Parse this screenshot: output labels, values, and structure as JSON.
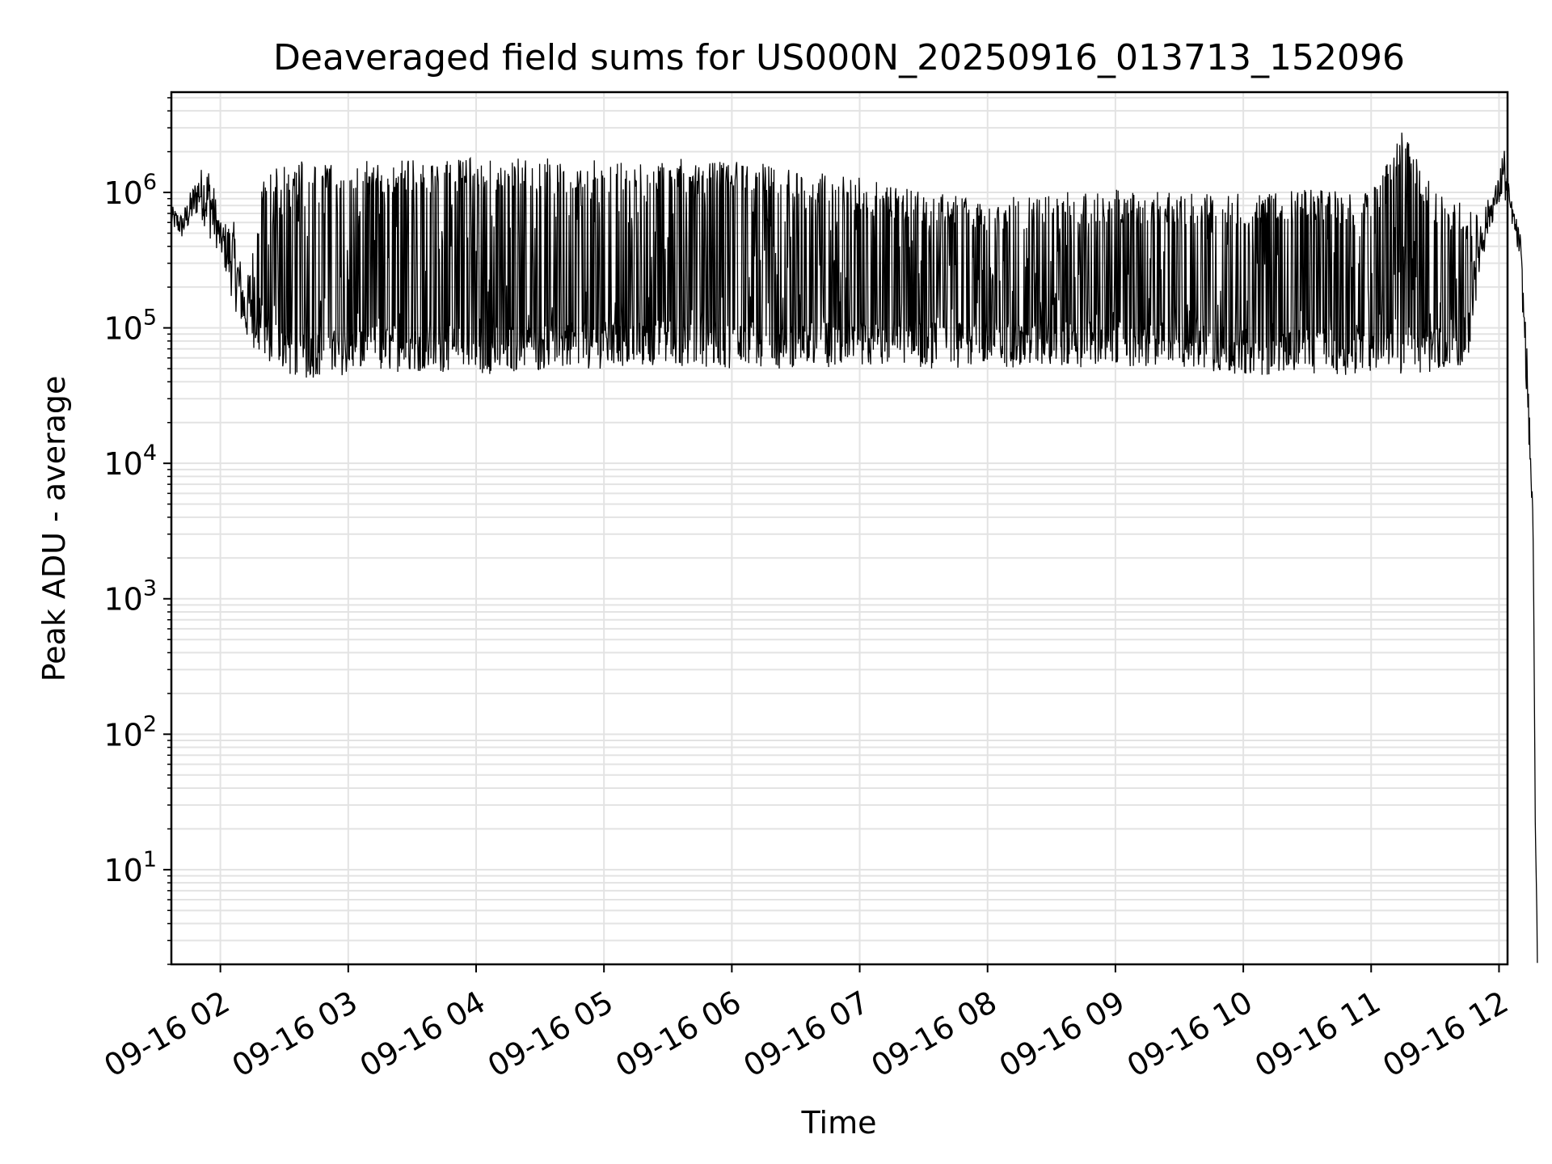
{
  "chart_data": {
    "type": "line",
    "title": "Deaveraged field sums for US000N_20250916_013713_152096",
    "xlabel": "Time",
    "ylabel": "Peak ADU - average",
    "yscale": "log",
    "ylim": [
      2,
      5500000
    ],
    "xlim": [
      "2025-09-16 01:37",
      "2025-09-16 12:04"
    ],
    "grid": true,
    "x_tick_labels": [
      "09-16 02",
      "09-16 03",
      "09-16 04",
      "09-16 05",
      "09-16 06",
      "09-16 07",
      "09-16 08",
      "09-16 09",
      "09-16 10",
      "09-16 11",
      "09-16 12"
    ],
    "y_ticks": [
      {
        "base": "10",
        "exp": "1",
        "value": 10
      },
      {
        "base": "10",
        "exp": "2",
        "value": 100
      },
      {
        "base": "10",
        "exp": "3",
        "value": 1000
      },
      {
        "base": "10",
        "exp": "4",
        "value": 10000
      },
      {
        "base": "10",
        "exp": "5",
        "value": 100000
      },
      {
        "base": "10",
        "exp": "6",
        "value": 1000000
      }
    ],
    "series": [
      {
        "color": "#000000",
        "envelope": [
          {
            "x": "2025-09-16 01:37",
            "low": 550000,
            "high": 800000
          },
          {
            "x": "2025-09-16 01:42",
            "low": 450000,
            "high": 700000
          },
          {
            "x": "2025-09-16 01:50",
            "low": 700000,
            "high": 1500000
          },
          {
            "x": "2025-09-16 01:55",
            "low": 450000,
            "high": 1700000
          },
          {
            "x": "2025-09-16 02:00",
            "low": 350000,
            "high": 600000
          },
          {
            "x": "2025-09-16 02:06",
            "low": 150000,
            "high": 650000
          },
          {
            "x": "2025-09-16 02:12",
            "low": 80000,
            "high": 200000
          },
          {
            "x": "2025-09-16 02:20",
            "low": 60000,
            "high": 1400000
          },
          {
            "x": "2025-09-16 02:30",
            "low": 45000,
            "high": 1600000
          },
          {
            "x": "2025-09-16 02:40",
            "low": 42000,
            "high": 1750000
          },
          {
            "x": "2025-09-16 03:00",
            "low": 45000,
            "high": 1700000
          },
          {
            "x": "2025-09-16 03:30",
            "low": 48000,
            "high": 1750000
          },
          {
            "x": "2025-09-16 04:00",
            "low": 45000,
            "high": 1800000
          },
          {
            "x": "2025-09-16 04:30",
            "low": 48000,
            "high": 1800000
          },
          {
            "x": "2025-09-16 05:00",
            "low": 50000,
            "high": 1750000
          },
          {
            "x": "2025-09-16 05:30",
            "low": 52000,
            "high": 1800000
          },
          {
            "x": "2025-09-16 06:00",
            "low": 50000,
            "high": 1700000
          },
          {
            "x": "2025-09-16 06:30",
            "low": 50000,
            "high": 1550000
          },
          {
            "x": "2025-09-16 07:00",
            "low": 50000,
            "high": 1300000
          },
          {
            "x": "2025-09-16 07:30",
            "low": 50000,
            "high": 1000000
          },
          {
            "x": "2025-09-16 08:00",
            "low": 50000,
            "high": 900000
          },
          {
            "x": "2025-09-16 08:30",
            "low": 52000,
            "high": 1000000
          },
          {
            "x": "2025-09-16 09:00",
            "low": 50000,
            "high": 1050000
          },
          {
            "x": "2025-09-16 09:30",
            "low": 50000,
            "high": 1000000
          },
          {
            "x": "2025-09-16 10:00",
            "low": 45000,
            "high": 1000000
          },
          {
            "x": "2025-09-16 10:30",
            "low": 45000,
            "high": 1050000
          },
          {
            "x": "2025-09-16 11:00",
            "low": 45000,
            "high": 1000000
          },
          {
            "x": "2025-09-16 11:15",
            "low": 45000,
            "high": 2900000
          },
          {
            "x": "2025-09-16 11:30",
            "low": 45000,
            "high": 1000000
          },
          {
            "x": "2025-09-16 11:45",
            "low": 50000,
            "high": 800000
          },
          {
            "x": "2025-09-16 11:50",
            "low": 200000,
            "high": 700000
          },
          {
            "x": "2025-09-16 11:55",
            "low": 500000,
            "high": 900000
          },
          {
            "x": "2025-09-16 12:00",
            "low": 800000,
            "high": 1300000
          },
          {
            "x": "2025-09-16 12:02",
            "low": 900000,
            "high": 2500000
          },
          {
            "x": "2025-09-16 12:05",
            "low": 700000,
            "high": 1000000
          },
          {
            "x": "2025-09-16 12:10",
            "low": 300000,
            "high": 500000
          },
          {
            "x": "2025-09-16 12:13",
            "low": 30000,
            "high": 80000
          },
          {
            "x": "2025-09-16 12:16",
            "low": 3000,
            "high": 4000
          },
          {
            "x": "2025-09-16 12:17",
            "low": 20,
            "high": 25
          },
          {
            "x": "2025-09-16 12:18",
            "low": 2,
            "high": 3
          }
        ]
      }
    ]
  }
}
